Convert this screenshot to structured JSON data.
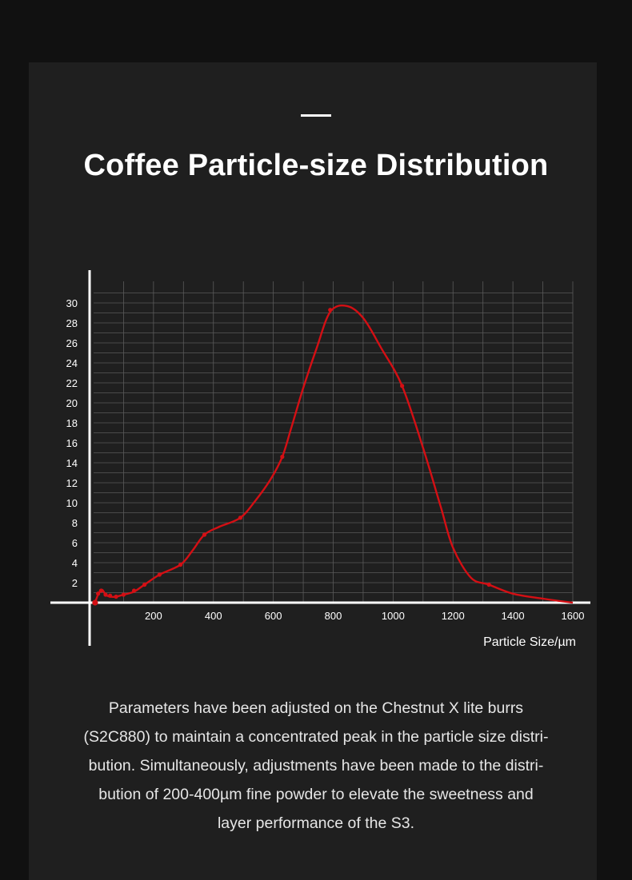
{
  "header": {
    "accent": "—",
    "title": "Coffee Particle-size Distribution"
  },
  "description": "Parameters have been adjusted on the Chestnut X lite burrs (S2C880) to maintain a concentrated peak in the particle size distri-bution. Simultaneously, adjustments have been made to the distri-bution of 200-400µm fine powder to elevate the sweetness and layer performance of the S3.",
  "colors": {
    "background": "#111111",
    "panel": "#1f1f1f",
    "curve": "#d40f14",
    "grid": "#5a5a5a",
    "axis": "#ffffff"
  },
  "chart_data": {
    "type": "line",
    "title": "",
    "xlabel": "Particle Size/µm",
    "ylabel": "",
    "xlim": [
      0,
      1600
    ],
    "ylim": [
      0,
      30
    ],
    "x_ticks": [
      200,
      400,
      600,
      800,
      1000,
      1200,
      1400,
      1600
    ],
    "y_ticks": [
      2,
      4,
      6,
      8,
      10,
      12,
      14,
      16,
      18,
      20,
      22,
      24,
      26,
      28,
      30
    ],
    "grid": true,
    "series": [
      {
        "curve": [
          [
            5,
            0
          ],
          [
            15,
            0.8
          ],
          [
            28,
            1.3
          ],
          [
            40,
            0.8
          ],
          [
            55,
            0.6
          ],
          [
            75,
            0.6
          ],
          [
            100,
            0.8
          ],
          [
            135,
            1.1
          ],
          [
            170,
            1.8
          ],
          [
            220,
            2.8
          ],
          [
            290,
            3.8
          ],
          [
            330,
            5.2
          ],
          [
            370,
            6.8
          ],
          [
            420,
            7.6
          ],
          [
            490,
            8.5
          ],
          [
            540,
            10.2
          ],
          [
            590,
            12.3
          ],
          [
            630,
            14.6
          ],
          [
            660,
            17.5
          ],
          [
            700,
            21.5
          ],
          [
            745,
            25.5
          ],
          [
            790,
            29.1
          ],
          [
            845,
            29.7
          ],
          [
            900,
            28.5
          ],
          [
            960,
            25.5
          ],
          [
            1030,
            21.7
          ],
          [
            1100,
            15.5
          ],
          [
            1160,
            9.5
          ],
          [
            1200,
            5.5
          ],
          [
            1260,
            2.5
          ],
          [
            1320,
            1.8
          ],
          [
            1400,
            0.9
          ],
          [
            1500,
            0.4
          ],
          [
            1600,
            0
          ]
        ],
        "points": [
          [
            5,
            0
          ],
          [
            15,
            0.9
          ],
          [
            25,
            1.2
          ],
          [
            40,
            0.8
          ],
          [
            55,
            0.7
          ],
          [
            75,
            0.6
          ],
          [
            100,
            0.8
          ],
          [
            135,
            1.2
          ],
          [
            170,
            1.8
          ],
          [
            220,
            2.8
          ],
          [
            290,
            3.8
          ],
          [
            370,
            6.8
          ],
          [
            490,
            8.5
          ],
          [
            630,
            14.6
          ],
          [
            790,
            29.3
          ],
          [
            1030,
            21.7
          ],
          [
            1320,
            1.8
          ]
        ]
      }
    ]
  }
}
